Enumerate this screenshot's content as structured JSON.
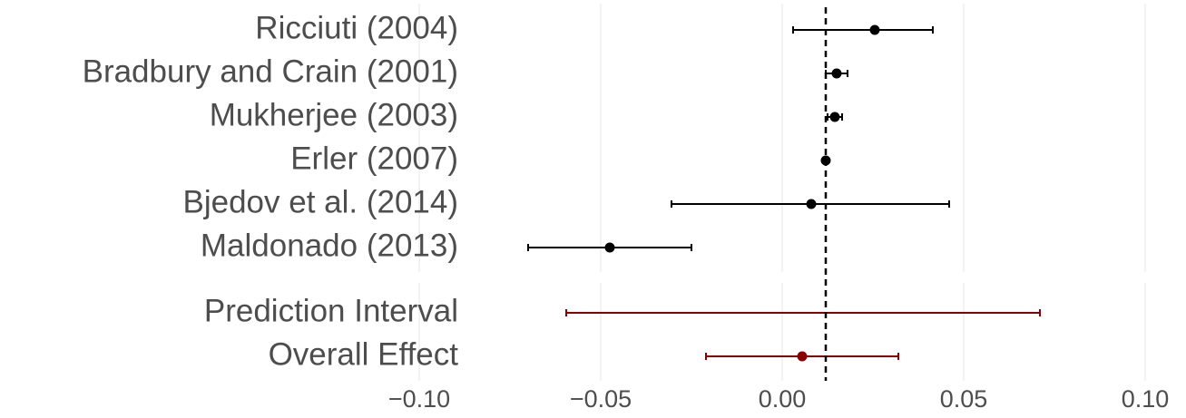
{
  "chart_data": {
    "type": "forest",
    "categories": [
      "Ricciuti (2004)",
      "Bradbury and Crain (2001)",
      "Mukherjee (2003)",
      "Erler (2007)",
      "Bjedov et al. (2014)",
      "Maldonado (2013)"
    ],
    "values": [
      0.0255,
      0.015,
      0.0145,
      0.012,
      0.008,
      -0.0475
    ],
    "lower": [
      0.003,
      0.012,
      0.0125,
      0.012,
      -0.0305,
      -0.07
    ],
    "upper": [
      0.0415,
      0.018,
      0.0165,
      0.012,
      0.046,
      -0.025
    ],
    "color": "#000000",
    "summary_categories": [
      "Prediction Interval",
      "Overall Effect"
    ],
    "summary_values": [
      null,
      0.0055
    ],
    "summary_lower": [
      -0.0595,
      -0.021
    ],
    "summary_upper": [
      0.071,
      0.032
    ],
    "summary_color": "#8b0000",
    "reference_line": 0.012,
    "xlim": [
      -0.1,
      0.1
    ],
    "xticks": [
      {
        "value": -0.1,
        "label": "−0.10"
      },
      {
        "value": -0.05,
        "label": "−0.05"
      },
      {
        "value": 0,
        "label": "0.00"
      },
      {
        "value": 0.05,
        "label": "0.05"
      },
      {
        "value": 0.1,
        "label": "0.10"
      }
    ],
    "grid": true
  }
}
